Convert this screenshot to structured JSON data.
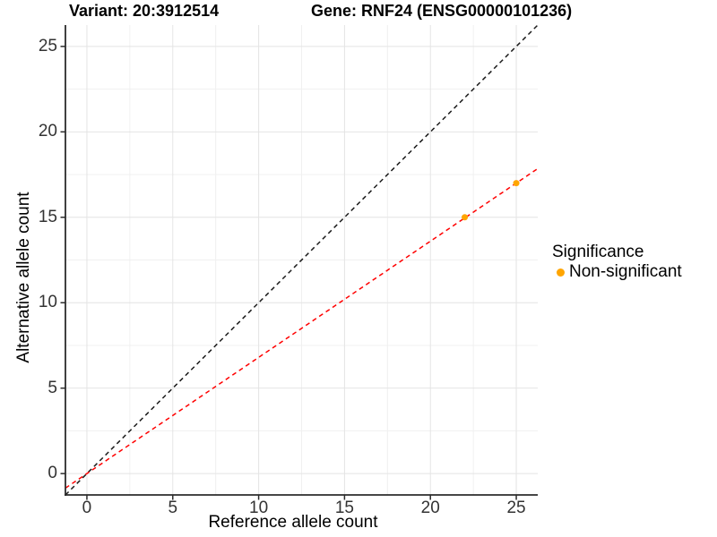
{
  "chart_data": {
    "type": "scatter",
    "title_left": "Variant: 20:3912514",
    "title_right": "Gene: RNF24 (ENSG00000101236)",
    "xlabel": "Reference allele count",
    "ylabel": "Alternative allele count",
    "xlim": [
      -1.25,
      26.25
    ],
    "ylim": [
      -1.25,
      26.25
    ],
    "x_ticks": [
      0,
      5,
      10,
      15,
      20,
      25
    ],
    "y_ticks": [
      0,
      5,
      10,
      15,
      20,
      25
    ],
    "x_minor_ticks": [
      2.5,
      7.5,
      12.5,
      17.5,
      22.5
    ],
    "y_minor_ticks": [
      2.5,
      7.5,
      12.5,
      17.5,
      22.5
    ],
    "grid": true,
    "points": [
      {
        "x": 22,
        "y": 15,
        "series": "Non-significant"
      },
      {
        "x": 25,
        "y": 17,
        "series": "Non-significant"
      }
    ],
    "point_color": "#FFA500",
    "lines": [
      {
        "name": "identity-line",
        "slope": 1,
        "intercept": 0,
        "color": "#1a1a1a",
        "style": "dashed"
      },
      {
        "name": "fitted-line",
        "slope": 0.68,
        "intercept": 0,
        "color": "#ff0000",
        "style": "dashed"
      }
    ],
    "legend": {
      "position": "right",
      "title": "Significance",
      "items": [
        {
          "label": "Non-significant",
          "color": "#FFA500"
        }
      ]
    },
    "colors": {
      "grid_major": "#e4e4e4",
      "grid_minor": "#f0f0f0",
      "axis_line": "#2b2b2b",
      "tick_text": "#333333"
    }
  }
}
